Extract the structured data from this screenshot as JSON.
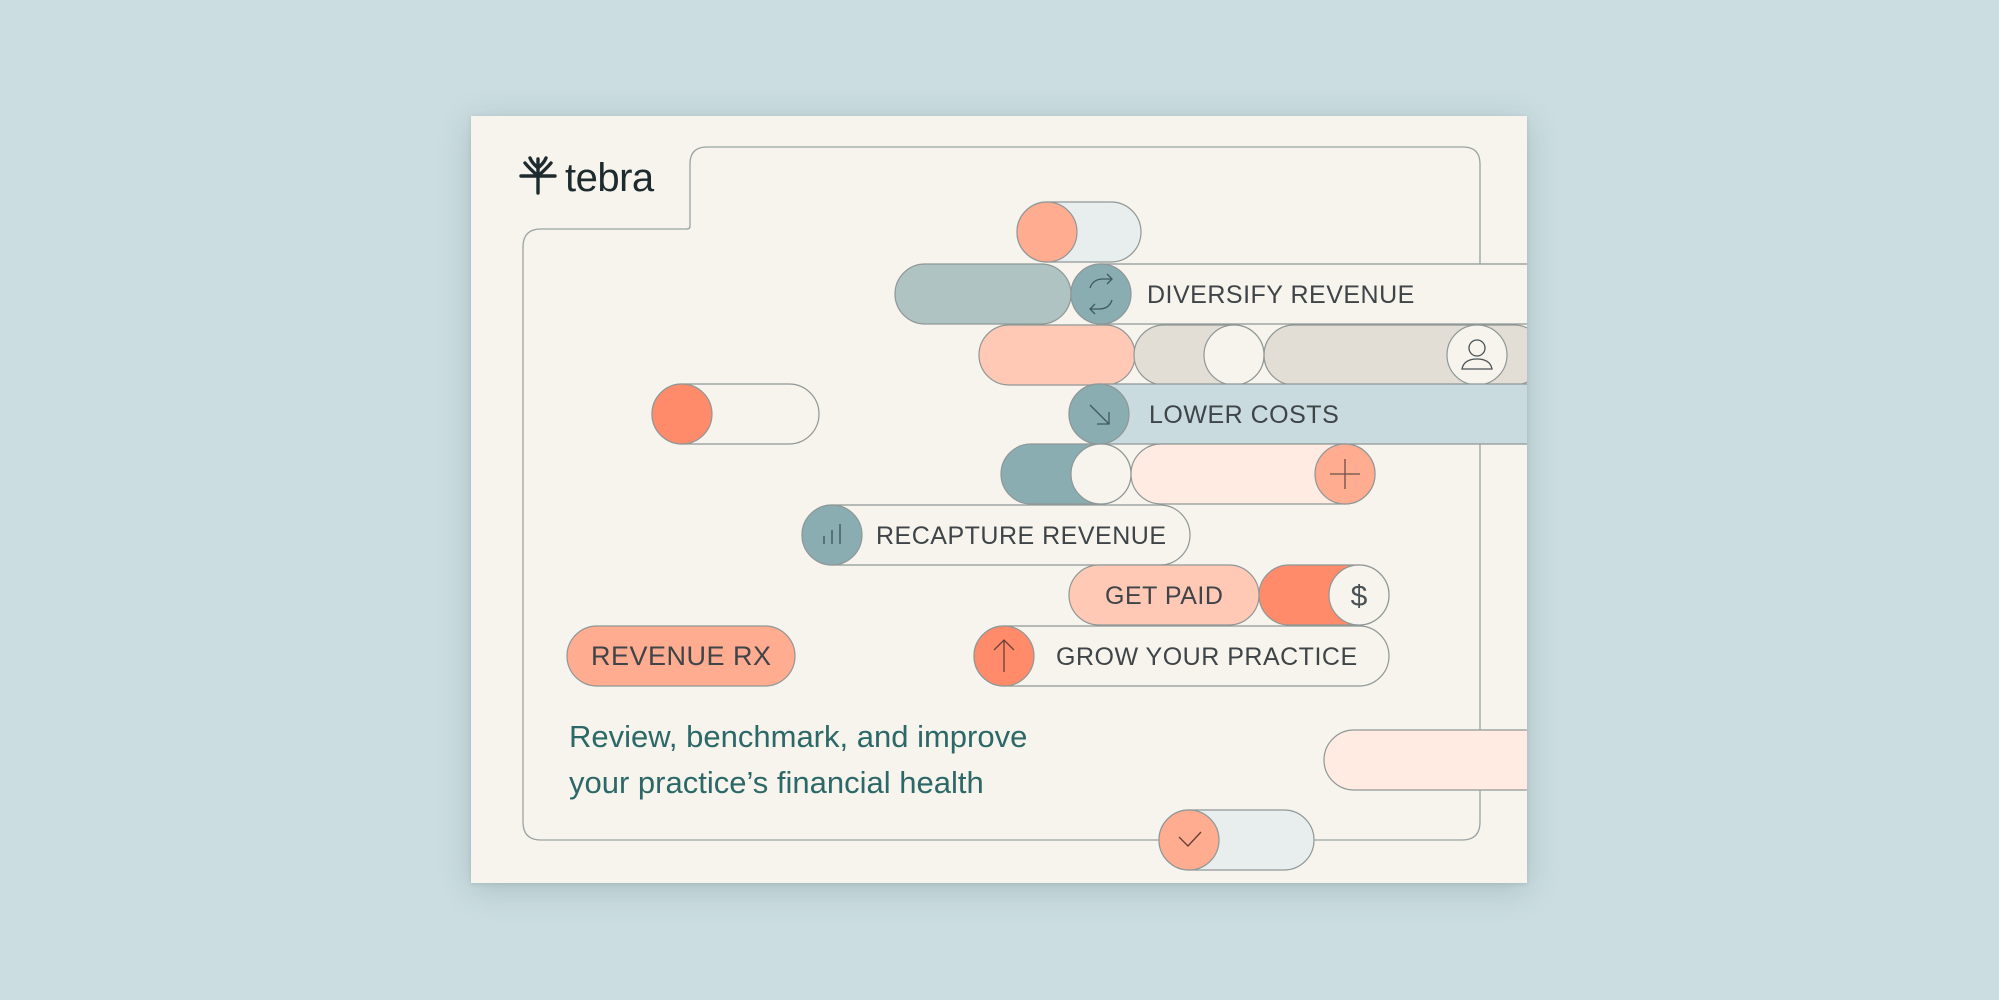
{
  "brand": {
    "name": "tebra"
  },
  "pills": {
    "diversify": "DIVERSIFY REVENUE",
    "lower_costs": "LOWER COSTS",
    "recapture": "RECAPTURE REVENUE",
    "get_paid": "GET PAID",
    "grow": "GROW YOUR PRACTICE",
    "revenue_rx": "REVENUE RX"
  },
  "tagline": {
    "line1": "Review, benchmark, and improve",
    "line2": "your practice’s financial health"
  },
  "icons": {
    "dollar_symbol": "$"
  },
  "colors": {
    "page_background": "#cbdde0",
    "card_background": "#f6f4ec",
    "coral": "#ff8b6a",
    "salmon": "#ffac90",
    "peach": "#ffc9b6",
    "blush": "#ffebe2",
    "teal": "#8aadb2",
    "sage": "#afc3c3",
    "ice": "#e8eeee",
    "pale_blue": "#c9dbde",
    "stone": "#e2ded5",
    "tagline_text": "#2c6868"
  }
}
